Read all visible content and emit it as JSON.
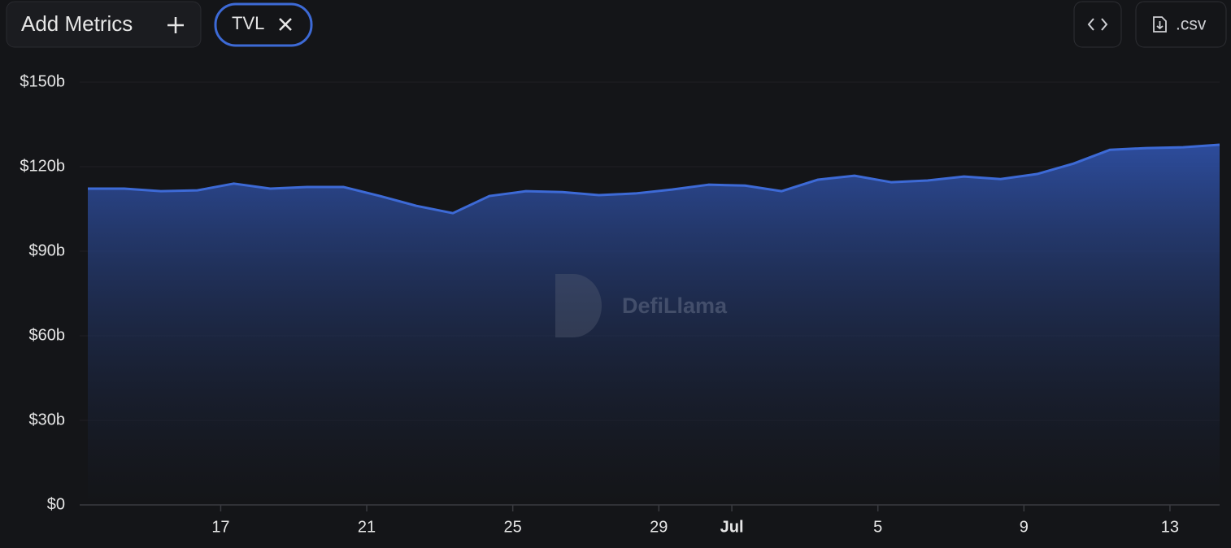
{
  "toolbar": {
    "add_button": "Add Metrics",
    "metric_chip": "TVL",
    "csv_button": ".csv"
  },
  "watermark": "DefiLlama",
  "chart_data": {
    "type": "area",
    "categories": [
      null,
      null,
      null,
      null,
      "17",
      null,
      null,
      null,
      "21",
      null,
      null,
      null,
      "25",
      null,
      null,
      null,
      "29",
      null,
      "Jul",
      null,
      null,
      null,
      "5",
      null,
      null,
      null,
      "9",
      null,
      null,
      null,
      "13",
      null
    ],
    "series": [
      {
        "name": "TVL",
        "color": "#3d6ad6",
        "values": [
          112.2,
          112.2,
          111.3,
          111.6,
          114.0,
          112.2,
          112.8,
          112.8,
          109.6,
          106.1,
          103.5,
          109.6,
          111.3,
          111.0,
          109.9,
          110.5,
          111.9,
          113.6,
          113.3,
          111.3,
          115.4,
          116.8,
          114.5,
          115.1,
          116.5,
          115.6,
          117.4,
          121.1,
          126.0,
          126.6,
          126.9,
          127.8
        ]
      }
    ],
    "ylim": [
      0,
      150
    ],
    "yticks": [
      {
        "value": 0,
        "label": "$0"
      },
      {
        "value": 30,
        "label": "$30b"
      },
      {
        "value": 60,
        "label": "$60b"
      },
      {
        "value": 90,
        "label": "$90b"
      },
      {
        "value": 120,
        "label": "$120b"
      },
      {
        "value": 150,
        "label": "$150b"
      }
    ],
    "grid": true
  }
}
